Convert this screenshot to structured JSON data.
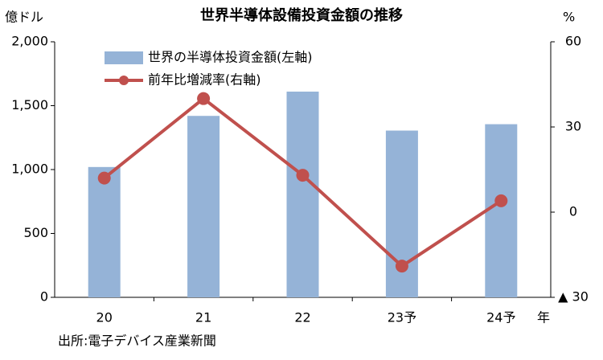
{
  "chart_data": {
    "type": "combo",
    "title": "世界半導体設備投資金額の推移",
    "ylabel": "億ドル",
    "y2label": "%",
    "xlabel": "年",
    "categories": [
      "20",
      "21",
      "22",
      "23予",
      "24予"
    ],
    "series": [
      {
        "name": "世界の半導体投資金額(左軸)",
        "type": "bar",
        "color": "#95b3d7",
        "values": [
          1020,
          1420,
          1610,
          1305,
          1355
        ]
      },
      {
        "name": "前年比増減率(右軸)",
        "type": "line",
        "axis": "y2",
        "color": "#c0504d",
        "values": [
          12,
          40,
          13,
          -19,
          4
        ]
      }
    ],
    "ylim": [
      0,
      2000
    ],
    "yticks": [
      0,
      500,
      {
        "value": 1000,
        "label": "1,000"
      },
      {
        "value": 1500,
        "label": "1,500"
      },
      {
        "value": 2000,
        "label": "2,000"
      }
    ],
    "y2lim": [
      -30,
      60
    ],
    "y2ticks": [
      {
        "value": -30,
        "label": "▲ 30"
      },
      0,
      30,
      60
    ],
    "source": "出所:電子デバイス産業新聞"
  }
}
